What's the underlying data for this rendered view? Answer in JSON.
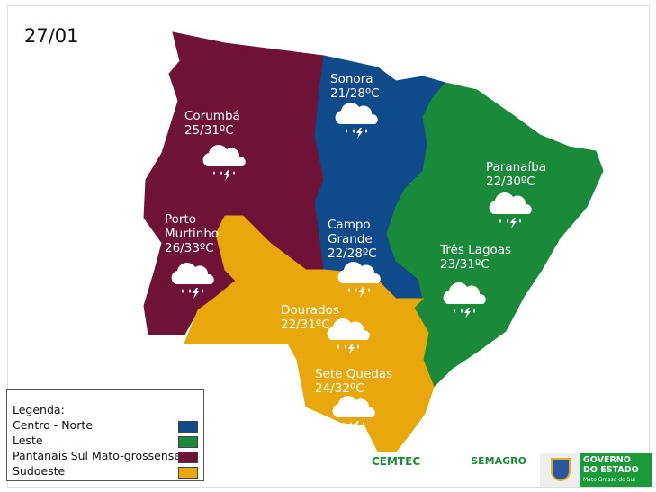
{
  "date": "27/01",
  "colors": {
    "centro_norte": "#0f4a8a",
    "leste": "#1a8a3a",
    "pantanais": "#6e1238",
    "sudoeste": "#e8a80c"
  },
  "cities": [
    {
      "name": "Sonora",
      "temp": "21/28ºC",
      "icon": "cloud-rain-lightning-icon"
    },
    {
      "name": "Corumbá",
      "temp": "25/31ºC",
      "icon": "cloud-rain-lightning-icon"
    },
    {
      "name": "Paranaíba",
      "temp": "22/30ºC",
      "icon": "cloud-rain-lightning-icon"
    },
    {
      "name": "Porto Murtinho",
      "temp": "26/33ºC",
      "icon": "cloud-rain-lightning-icon"
    },
    {
      "name": "Campo Grande",
      "temp": "22/28ºC",
      "icon": "cloud-rain-lightning-icon"
    },
    {
      "name": "Três Lagoas",
      "temp": "23/31ºC",
      "icon": "cloud-rain-lightning-icon"
    },
    {
      "name": "Dourados",
      "temp": "22/31ºC",
      "icon": "cloud-rain-lightning-icon"
    },
    {
      "name": "Sete Quedas",
      "temp": "24/32ºC",
      "icon": "cloud-rain-lightning-icon"
    }
  ],
  "legend": {
    "title": "Legenda:",
    "items": [
      {
        "label": "Centro - Norte",
        "color": "#0f4a8a"
      },
      {
        "label": "Leste",
        "color": "#1a8a3a"
      },
      {
        "label": "Pantanais Sul Mato-grossense",
        "color": "#6e1238"
      },
      {
        "label": "Sudoeste",
        "color": "#e8a80c"
      }
    ]
  },
  "logos": {
    "cemtec": "CEMTEC",
    "semagro": "SEMAGRO",
    "gov_line1": "GOVERNO",
    "gov_line2": "DO ESTADO",
    "gov_line3": "Mato Grosso do Sul"
  }
}
